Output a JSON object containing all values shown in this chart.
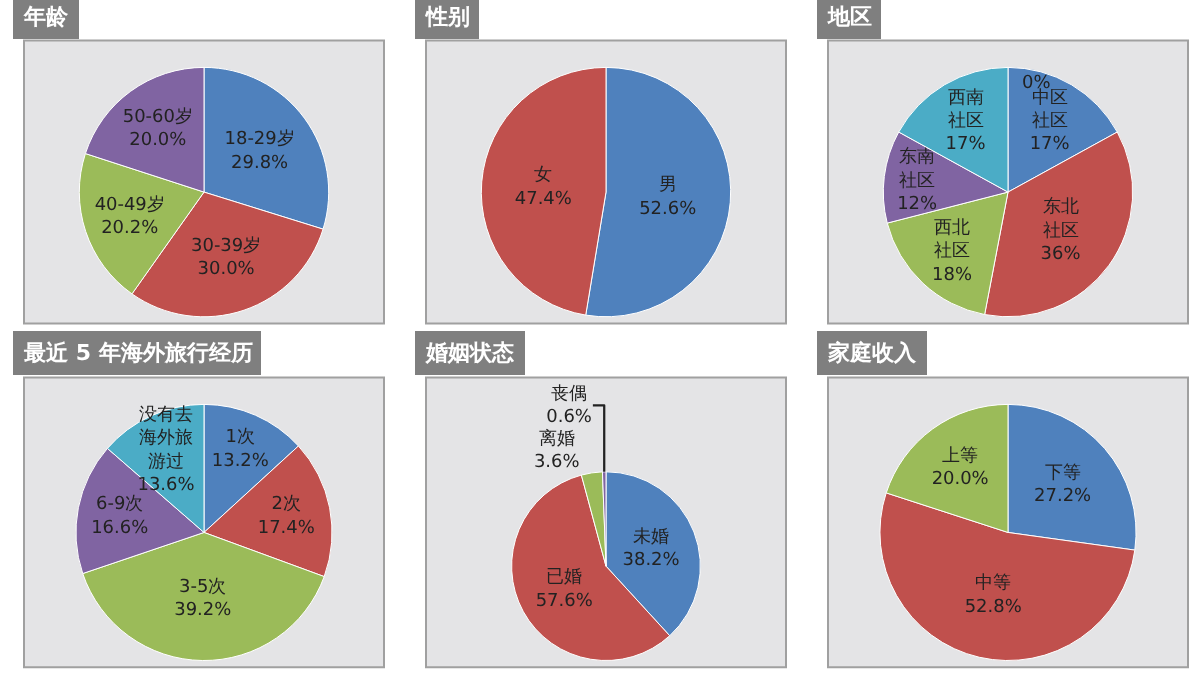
{
  "chart_data": [
    {
      "type": "pie",
      "title": "年龄",
      "categories": [
        "18-29岁",
        "30-39岁",
        "40-49岁",
        "50-60岁"
      ],
      "values": [
        29.8,
        30.0,
        20.2,
        20.0
      ],
      "colors": [
        "#4f81bd",
        "#c0504d",
        "#9bbb59",
        "#8064a2"
      ],
      "value_labels": [
        "29.8%",
        "30.0%",
        "20.2%",
        "20.0%"
      ]
    },
    {
      "type": "pie",
      "title": "性别",
      "categories": [
        "男",
        "女"
      ],
      "values": [
        52.6,
        47.4
      ],
      "colors": [
        "#4f81bd",
        "#c0504d"
      ],
      "value_labels": [
        "52.6%",
        "47.4%"
      ]
    },
    {
      "type": "pie",
      "title": "地区",
      "categories": [
        "中区社区",
        "东北社区",
        "西北社区",
        "东南社区",
        "西南社区"
      ],
      "values": [
        17,
        36,
        18,
        12,
        17
      ],
      "colors": [
        "#4f81bd",
        "#c0504d",
        "#9bbb59",
        "#8064a2",
        "#4bacc6"
      ],
      "value_labels": [
        "17%",
        "36%",
        "18%",
        "12%",
        "17%"
      ],
      "annotations": [
        "0%"
      ]
    },
    {
      "type": "pie",
      "title": "最近 5 年海外旅行经历",
      "categories": [
        "1次",
        "2次",
        "3-5次",
        "6-9次",
        "没有去海外旅游过"
      ],
      "values": [
        13.2,
        17.4,
        39.2,
        16.6,
        13.6
      ],
      "colors": [
        "#4f81bd",
        "#c0504d",
        "#9bbb59",
        "#8064a2",
        "#4bacc6"
      ],
      "value_labels": [
        "13.2%",
        "17.4%",
        "39.2%",
        "16.6%",
        "13.6%"
      ]
    },
    {
      "type": "pie",
      "title": "婚姻状态",
      "categories": [
        "未婚",
        "已婚",
        "离婚",
        "丧偶"
      ],
      "values": [
        38.2,
        57.6,
        3.6,
        0.6
      ],
      "colors": [
        "#4f81bd",
        "#c0504d",
        "#9bbb59",
        "#8064a2"
      ],
      "value_labels": [
        "38.2%",
        "57.6%",
        "3.6%",
        "0.6%"
      ]
    },
    {
      "type": "pie",
      "title": "家庭收入",
      "categories": [
        "下等",
        "中等",
        "上等"
      ],
      "values": [
        27.2,
        52.8,
        20.0
      ],
      "colors": [
        "#4f81bd",
        "#c0504d",
        "#9bbb59"
      ],
      "value_labels": [
        "27.2%",
        "52.8%",
        "20.0%"
      ]
    }
  ]
}
